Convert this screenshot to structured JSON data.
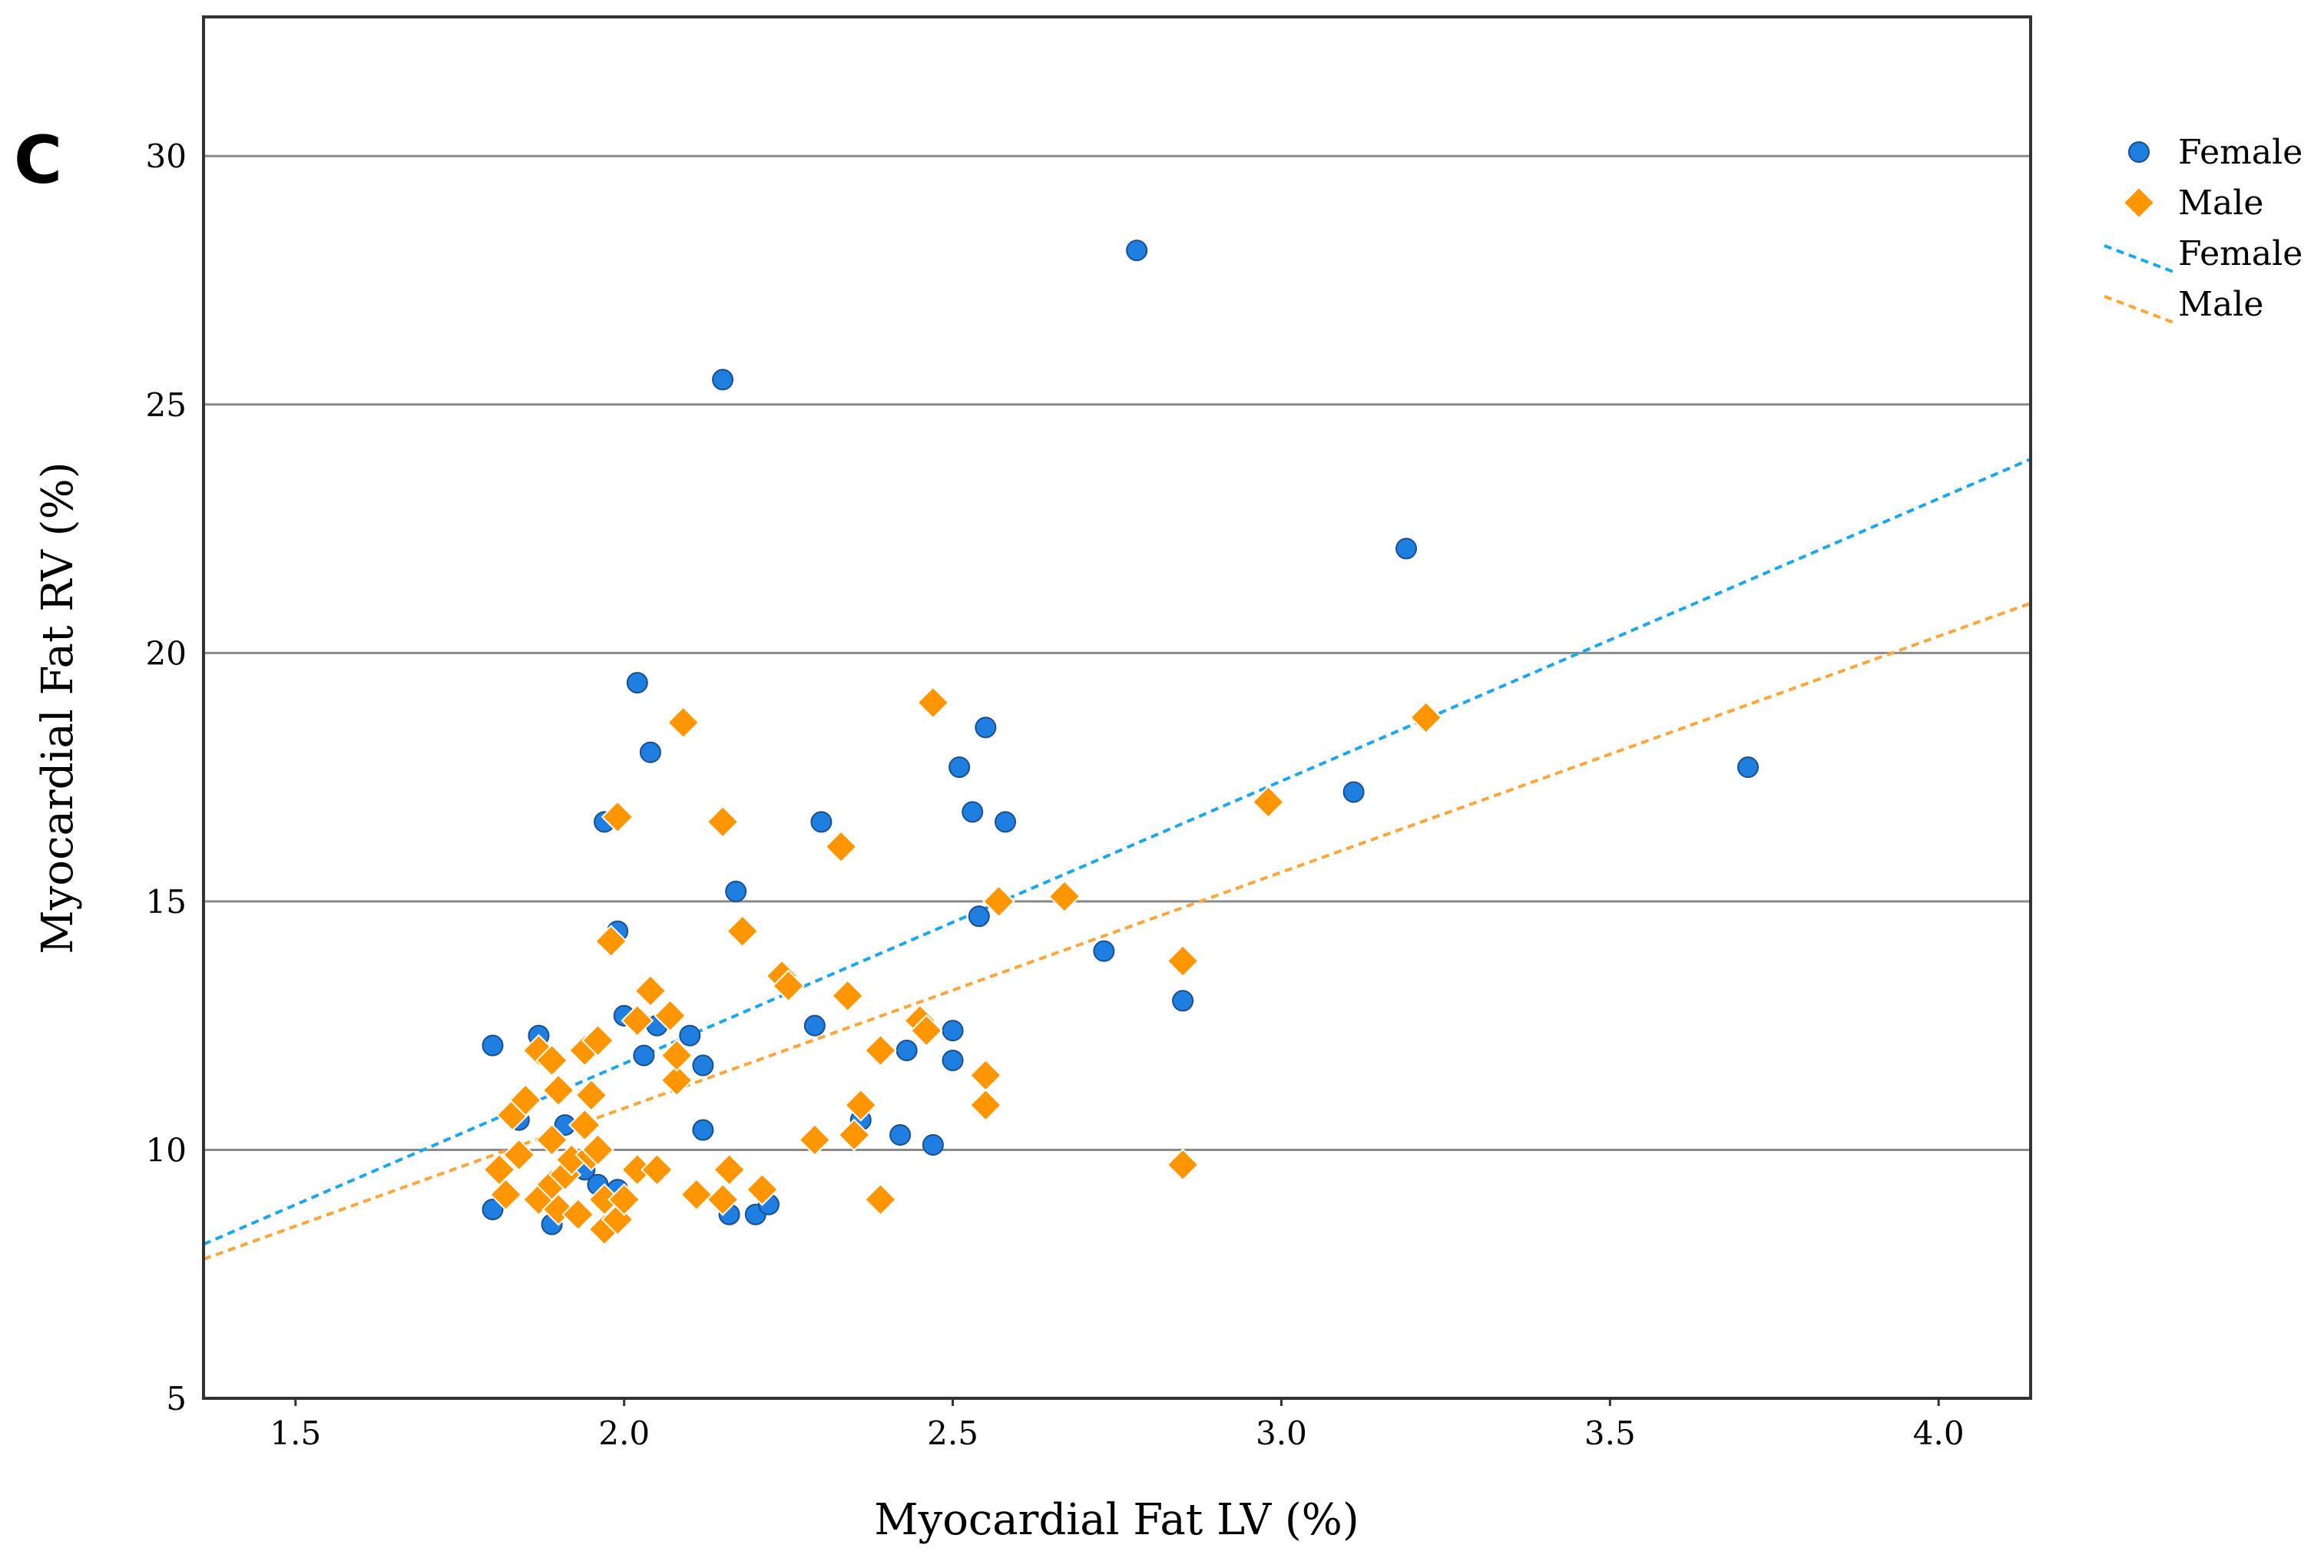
{
  "panel_label": "C",
  "chart_data": {
    "type": "scatter",
    "title": "",
    "xlabel": "Myocardial Fat LV (%)",
    "ylabel": "Myocardial Fat RV (%)",
    "xlim": [
      1.36,
      4.14
    ],
    "ylim": [
      5,
      32.8
    ],
    "x_ticks": [
      1.5,
      2.0,
      2.5,
      3.0,
      3.5,
      4.0
    ],
    "x_tick_labels": [
      "1.5",
      "2.0",
      "2.5",
      "3.0",
      "3.5",
      "4.0"
    ],
    "y_ticks": [
      5,
      10,
      15,
      20,
      25,
      30
    ],
    "y_tick_labels": [
      "5",
      "10",
      "15",
      "20",
      "25",
      "30"
    ],
    "grid": "horizontal",
    "legend_position": "right",
    "colors": {
      "female": "#1f7fe0",
      "male": "#ff9600",
      "female_line": "#1aa6f0",
      "male_line": "#ffa53a",
      "axis": "#333333",
      "grid": "#8a8a8a"
    },
    "series": [
      {
        "name": "Female",
        "marker": "circle",
        "points": [
          [
            1.8,
            12.1
          ],
          [
            1.8,
            8.8
          ],
          [
            1.84,
            10.6
          ],
          [
            1.87,
            12.3
          ],
          [
            1.89,
            8.5
          ],
          [
            1.91,
            10.5
          ],
          [
            1.94,
            9.6
          ],
          [
            1.96,
            9.3
          ],
          [
            1.97,
            16.6
          ],
          [
            1.98,
            8.5
          ],
          [
            1.99,
            14.4
          ],
          [
            1.99,
            9.2
          ],
          [
            2.0,
            12.7
          ],
          [
            2.02,
            19.4
          ],
          [
            2.03,
            11.9
          ],
          [
            2.04,
            18.0
          ],
          [
            2.05,
            12.5
          ],
          [
            2.1,
            12.3
          ],
          [
            2.12,
            11.7
          ],
          [
            2.12,
            10.4
          ],
          [
            2.15,
            25.5
          ],
          [
            2.16,
            8.7
          ],
          [
            2.17,
            15.2
          ],
          [
            2.2,
            8.7
          ],
          [
            2.22,
            8.9
          ],
          [
            2.29,
            12.5
          ],
          [
            2.3,
            16.6
          ],
          [
            2.36,
            10.6
          ],
          [
            2.42,
            10.3
          ],
          [
            2.43,
            12.0
          ],
          [
            2.47,
            10.1
          ],
          [
            2.5,
            12.4
          ],
          [
            2.5,
            11.8
          ],
          [
            2.51,
            17.7
          ],
          [
            2.53,
            16.8
          ],
          [
            2.54,
            14.7
          ],
          [
            2.55,
            18.5
          ],
          [
            2.58,
            16.6
          ],
          [
            2.73,
            14.0
          ],
          [
            2.78,
            28.1
          ],
          [
            2.85,
            13.0
          ],
          [
            3.11,
            17.2
          ],
          [
            3.19,
            22.1
          ],
          [
            3.71,
            17.7
          ]
        ]
      },
      {
        "name": "Male",
        "marker": "diamond",
        "points": [
          [
            1.81,
            9.6
          ],
          [
            1.82,
            9.1
          ],
          [
            1.83,
            10.7
          ],
          [
            1.84,
            9.9
          ],
          [
            1.85,
            11.0
          ],
          [
            1.87,
            12.0
          ],
          [
            1.87,
            9.0
          ],
          [
            1.89,
            11.8
          ],
          [
            1.89,
            10.2
          ],
          [
            1.89,
            9.3
          ],
          [
            1.9,
            11.2
          ],
          [
            1.9,
            8.8
          ],
          [
            1.91,
            9.5
          ],
          [
            1.92,
            9.8
          ],
          [
            1.93,
            8.7
          ],
          [
            1.94,
            12.0
          ],
          [
            1.94,
            10.5
          ],
          [
            1.95,
            11.1
          ],
          [
            1.95,
            9.9
          ],
          [
            1.96,
            12.2
          ],
          [
            1.96,
            10.0
          ],
          [
            1.97,
            8.4
          ],
          [
            1.97,
            9.0
          ],
          [
            1.98,
            14.2
          ],
          [
            1.99,
            16.7
          ],
          [
            1.99,
            8.6
          ],
          [
            2.0,
            9.0
          ],
          [
            2.02,
            12.6
          ],
          [
            2.02,
            9.6
          ],
          [
            2.04,
            13.2
          ],
          [
            2.05,
            9.6
          ],
          [
            2.07,
            12.7
          ],
          [
            2.08,
            11.4
          ],
          [
            2.08,
            11.9
          ],
          [
            2.09,
            18.6
          ],
          [
            2.11,
            9.1
          ],
          [
            2.15,
            16.6
          ],
          [
            2.15,
            9.0
          ],
          [
            2.16,
            9.6
          ],
          [
            2.18,
            14.4
          ],
          [
            2.21,
            9.2
          ],
          [
            2.24,
            13.5
          ],
          [
            2.25,
            13.3
          ],
          [
            2.29,
            10.2
          ],
          [
            2.33,
            16.1
          ],
          [
            2.34,
            13.1
          ],
          [
            2.35,
            10.3
          ],
          [
            2.36,
            10.9
          ],
          [
            2.39,
            12.0
          ],
          [
            2.39,
            9.0
          ],
          [
            2.45,
            12.6
          ],
          [
            2.46,
            12.4
          ],
          [
            2.47,
            19.0
          ],
          [
            2.55,
            11.5
          ],
          [
            2.55,
            10.9
          ],
          [
            2.57,
            15.0
          ],
          [
            2.67,
            15.1
          ],
          [
            2.85,
            13.8
          ],
          [
            2.85,
            9.7
          ],
          [
            2.98,
            17.0
          ],
          [
            3.22,
            18.7
          ]
        ]
      }
    ],
    "fit_lines": [
      {
        "name": "Female",
        "style": "dashed",
        "x": [
          1.36,
          4.14
        ],
        "y": [
          8.1,
          23.9
        ]
      },
      {
        "name": "Male",
        "style": "dashed",
        "x": [
          1.36,
          4.14
        ],
        "y": [
          7.8,
          21.0
        ]
      }
    ],
    "legend": [
      {
        "label": "Female",
        "kind": "circle"
      },
      {
        "label": "Male",
        "kind": "diamond"
      },
      {
        "label": "Female",
        "kind": "line"
      },
      {
        "label": "Male",
        "kind": "line"
      }
    ]
  }
}
